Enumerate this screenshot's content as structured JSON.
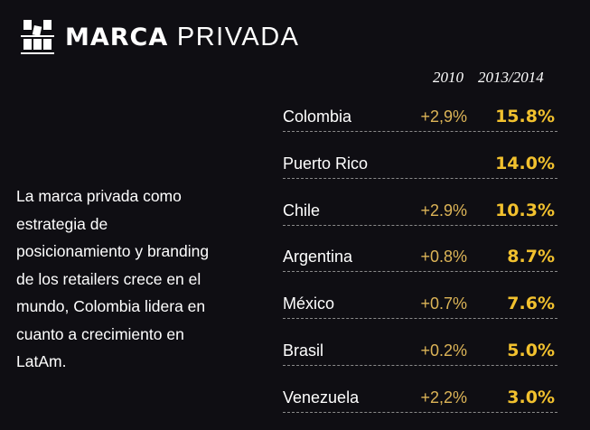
{
  "header": {
    "title_bold": "MARCA",
    "title_light": "PRIVADA",
    "logo_icon": "shelf-products-icon"
  },
  "columns": {
    "col1": "2010",
    "col2": "2013/2014"
  },
  "description": "La marca privada como estrategia de posicionamiento y branding de los retailers crece en el mundo, Colombia lidera en cuanto a crecimiento en LatAm.",
  "colors": {
    "background": "#0f0e13",
    "accent": "#f2c12e",
    "accent_light": "#dcb457"
  },
  "rows": [
    {
      "country": "Colombia",
      "v2010": "+2,9%",
      "v2014": "15.8%"
    },
    {
      "country": "Puerto Rico",
      "v2010": "",
      "v2014": "14.0%"
    },
    {
      "country": "Chile",
      "v2010": "+2.9%",
      "v2014": "10.3%"
    },
    {
      "country": "Argentina",
      "v2010": "+0.8%",
      "v2014": "8.7%"
    },
    {
      "country": "México",
      "v2010": "+0.7%",
      "v2014": "7.6%"
    },
    {
      "country": "Brasil",
      "v2010": "+0.2%",
      "v2014": "5.0%"
    },
    {
      "country": "Venezuela",
      "v2010": "+2,2%",
      "v2014": "3.0%"
    }
  ]
}
